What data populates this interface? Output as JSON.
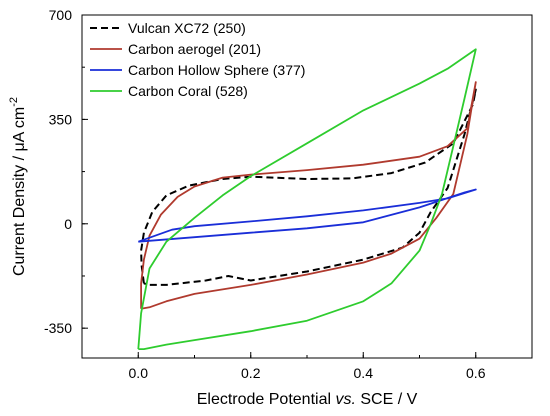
{
  "chart_data": {
    "type": "line",
    "xlim": [
      -0.1,
      0.7
    ],
    "ylim": [
      -450,
      700
    ],
    "x_ticks": [
      0.0,
      0.2,
      0.4,
      0.6
    ],
    "x_tick_labels": [
      "0.0",
      "0.2",
      "0.4",
      "0.6"
    ],
    "y_ticks": [
      -350,
      0,
      350,
      700
    ],
    "y_tick_labels": [
      "-350",
      "0",
      "350",
      "700"
    ],
    "xlabel": {
      "pre": "Electrode Potential ",
      "italic": "vs.",
      "post": " SCE / V"
    },
    "ylabel": {
      "pre": "Current Density / ",
      "mu": "μ",
      "post": "A cm",
      "sup": "-2"
    },
    "grid": false,
    "legend_position": "top-left",
    "series": [
      {
        "name": "Vulcan XC72 (250)",
        "color": "#000000",
        "dash": true,
        "points": [
          [
            0.01,
            -200
          ],
          [
            0.006,
            -140
          ],
          [
            0.005,
            -90
          ],
          [
            0.01,
            -30
          ],
          [
            0.025,
            40
          ],
          [
            0.05,
            95
          ],
          [
            0.09,
            128
          ],
          [
            0.15,
            150
          ],
          [
            0.2,
            158
          ],
          [
            0.3,
            150
          ],
          [
            0.38,
            152
          ],
          [
            0.45,
            170
          ],
          [
            0.51,
            205
          ],
          [
            0.56,
            270
          ],
          [
            0.595,
            400
          ],
          [
            0.6,
            450
          ],
          [
            0.58,
            300
          ],
          [
            0.55,
            120
          ],
          [
            0.52,
            40
          ],
          [
            0.5,
            -30
          ],
          [
            0.47,
            -80
          ],
          [
            0.4,
            -120
          ],
          [
            0.3,
            -160
          ],
          [
            0.2,
            -190
          ],
          [
            0.16,
            -175
          ],
          [
            0.12,
            -190
          ],
          [
            0.05,
            -205
          ],
          [
            0.02,
            -205
          ],
          [
            0.01,
            -200
          ]
        ]
      },
      {
        "name": "Carbon aerogel (201)",
        "color": "#b03a2e",
        "dash": false,
        "points": [
          [
            0.005,
            -285
          ],
          [
            0.005,
            -200
          ],
          [
            0.01,
            -120
          ],
          [
            0.02,
            -40
          ],
          [
            0.04,
            30
          ],
          [
            0.07,
            90
          ],
          [
            0.1,
            125
          ],
          [
            0.15,
            155
          ],
          [
            0.2,
            165
          ],
          [
            0.3,
            180
          ],
          [
            0.4,
            198
          ],
          [
            0.5,
            225
          ],
          [
            0.55,
            260
          ],
          [
            0.585,
            320
          ],
          [
            0.6,
            475
          ],
          [
            0.585,
            300
          ],
          [
            0.56,
            100
          ],
          [
            0.53,
            20
          ],
          [
            0.5,
            -50
          ],
          [
            0.45,
            -100
          ],
          [
            0.4,
            -130
          ],
          [
            0.3,
            -170
          ],
          [
            0.2,
            -205
          ],
          [
            0.1,
            -235
          ],
          [
            0.05,
            -260
          ],
          [
            0.02,
            -280
          ],
          [
            0.005,
            -285
          ]
        ]
      },
      {
        "name": "Carbon Hollow Sphere (377)",
        "color": "#1a2ed8",
        "dash": false,
        "points": [
          [
            0.0,
            -60
          ],
          [
            0.06,
            -20
          ],
          [
            0.1,
            -8
          ],
          [
            0.2,
            8
          ],
          [
            0.3,
            25
          ],
          [
            0.4,
            45
          ],
          [
            0.5,
            70
          ],
          [
            0.55,
            85
          ],
          [
            0.6,
            115
          ],
          [
            0.58,
            105
          ],
          [
            0.5,
            55
          ],
          [
            0.4,
            5
          ],
          [
            0.3,
            -15
          ],
          [
            0.2,
            -30
          ],
          [
            0.1,
            -45
          ],
          [
            0.0,
            -60
          ]
        ]
      },
      {
        "name": "Carbon Coral (528)",
        "color": "#2ecc2e",
        "dash": false,
        "points": [
          [
            0.0,
            -420
          ],
          [
            0.005,
            -300
          ],
          [
            0.02,
            -150
          ],
          [
            0.05,
            -60
          ],
          [
            0.1,
            20
          ],
          [
            0.15,
            95
          ],
          [
            0.2,
            160
          ],
          [
            0.3,
            270
          ],
          [
            0.4,
            380
          ],
          [
            0.5,
            470
          ],
          [
            0.55,
            520
          ],
          [
            0.6,
            585
          ],
          [
            0.58,
            420
          ],
          [
            0.56,
            260
          ],
          [
            0.54,
            100
          ],
          [
            0.52,
            0
          ],
          [
            0.5,
            -90
          ],
          [
            0.45,
            -200
          ],
          [
            0.4,
            -260
          ],
          [
            0.3,
            -325
          ],
          [
            0.2,
            -360
          ],
          [
            0.1,
            -390
          ],
          [
            0.05,
            -405
          ],
          [
            0.01,
            -420
          ],
          [
            0.0,
            -420
          ]
        ]
      }
    ]
  }
}
